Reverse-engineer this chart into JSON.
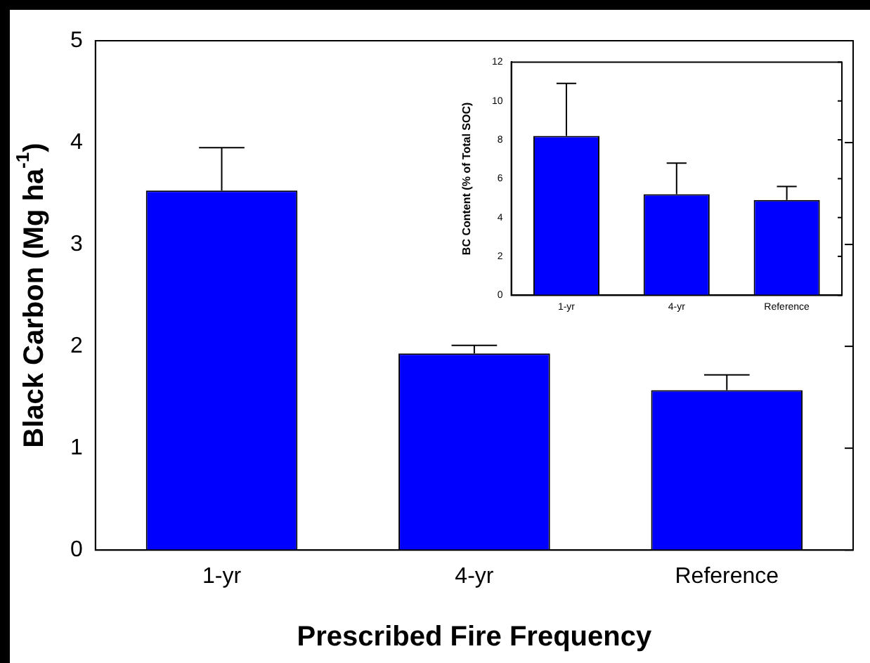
{
  "chart_data": [
    {
      "type": "bar",
      "xlabel": "Prescribed Fire Frequency",
      "ylabel": "Black Carbon (Mg ha$^{-1}$)",
      "categories": [
        "1-yr",
        "4-yr",
        "Reference"
      ],
      "series": [
        {
          "color": "#0000ff",
          "values": [
            3.53,
            1.93,
            1.57
          ],
          "errors": [
            0.42,
            0.08,
            0.15
          ]
        }
      ],
      "ylim": [
        0,
        5
      ],
      "yticks": [
        0,
        1,
        2,
        3,
        4,
        5
      ],
      "grid": false,
      "legend": false
    },
    {
      "type": "bar",
      "ylabel": "BC Content (% of Total SOC)",
      "categories": [
        "1-yr",
        "4-yr",
        "Reference"
      ],
      "series": [
        {
          "color": "#0000ff",
          "values": [
            8.2,
            5.2,
            4.9
          ],
          "errors": [
            2.7,
            1.6,
            0.7
          ]
        }
      ],
      "ylim": [
        0,
        12
      ],
      "yticks": [
        0,
        2,
        4,
        6,
        8,
        10,
        12
      ],
      "grid": false,
      "legend": false
    }
  ]
}
